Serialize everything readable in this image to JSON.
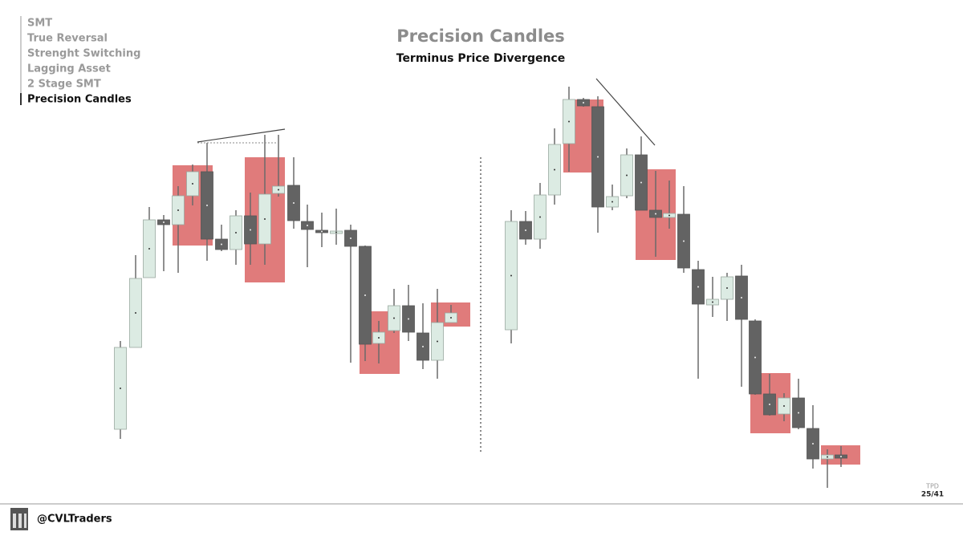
{
  "menu": [
    "SMT",
    "True Reversal",
    "Strenght Switching",
    "Lagging Asset",
    "2 Stage SMT",
    "Precision Candles"
  ],
  "title": "Precision Candles",
  "subtitle": "Terminus Price Divergence",
  "footer": {
    "handle": "@CVLTraders",
    "tag": "TPD",
    "page": "25/41"
  }
}
